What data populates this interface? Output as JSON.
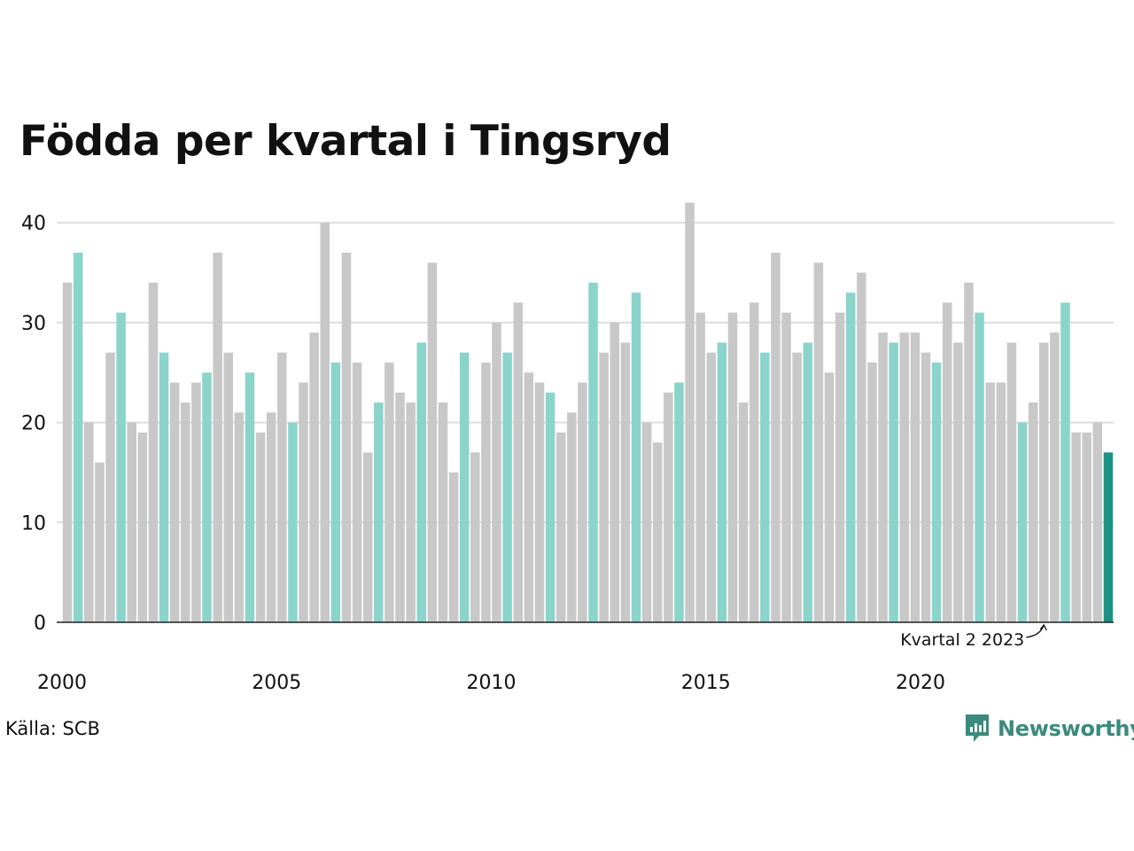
{
  "chart_data": {
    "type": "bar",
    "title": "Födda per kvartal i Tingsryd",
    "xlabel": "",
    "ylabel": "",
    "ylim": [
      0,
      45
    ],
    "yticks": [
      0,
      10,
      20,
      30,
      40
    ],
    "xtick_labels": [
      "2000",
      "2005",
      "2010",
      "2015",
      "2020"
    ],
    "grid": true,
    "start_year": 2000,
    "values": [
      34,
      37,
      20,
      16,
      27,
      31,
      20,
      19,
      34,
      27,
      24,
      22,
      24,
      25,
      37,
      27,
      21,
      25,
      19,
      21,
      27,
      20,
      24,
      29,
      40,
      26,
      37,
      26,
      17,
      22,
      26,
      23,
      22,
      28,
      36,
      22,
      15,
      27,
      17,
      26,
      30,
      27,
      32,
      25,
      24,
      23,
      19,
      21,
      24,
      34,
      27,
      30,
      28,
      33,
      20,
      18,
      23,
      24,
      42,
      31,
      27,
      28,
      31,
      22,
      32,
      27,
      37,
      31,
      27,
      28,
      36,
      25,
      31,
      33,
      35,
      26,
      29,
      28,
      29,
      29,
      27,
      26,
      32,
      28,
      34,
      31,
      24,
      24,
      28,
      20,
      22,
      28,
      29,
      32,
      19,
      19,
      20,
      17
    ],
    "colors": {
      "default": "#c8c8c8",
      "highlight": "#8bd4cb",
      "latest": "#1a9384",
      "grid": "#dddddd",
      "axis": "#222222"
    },
    "annotation": "Kvartal 2 2023"
  },
  "source": "Källa: SCB",
  "brand": {
    "name": "Newsworthy",
    "icon": "newsworthy-logo-icon"
  }
}
